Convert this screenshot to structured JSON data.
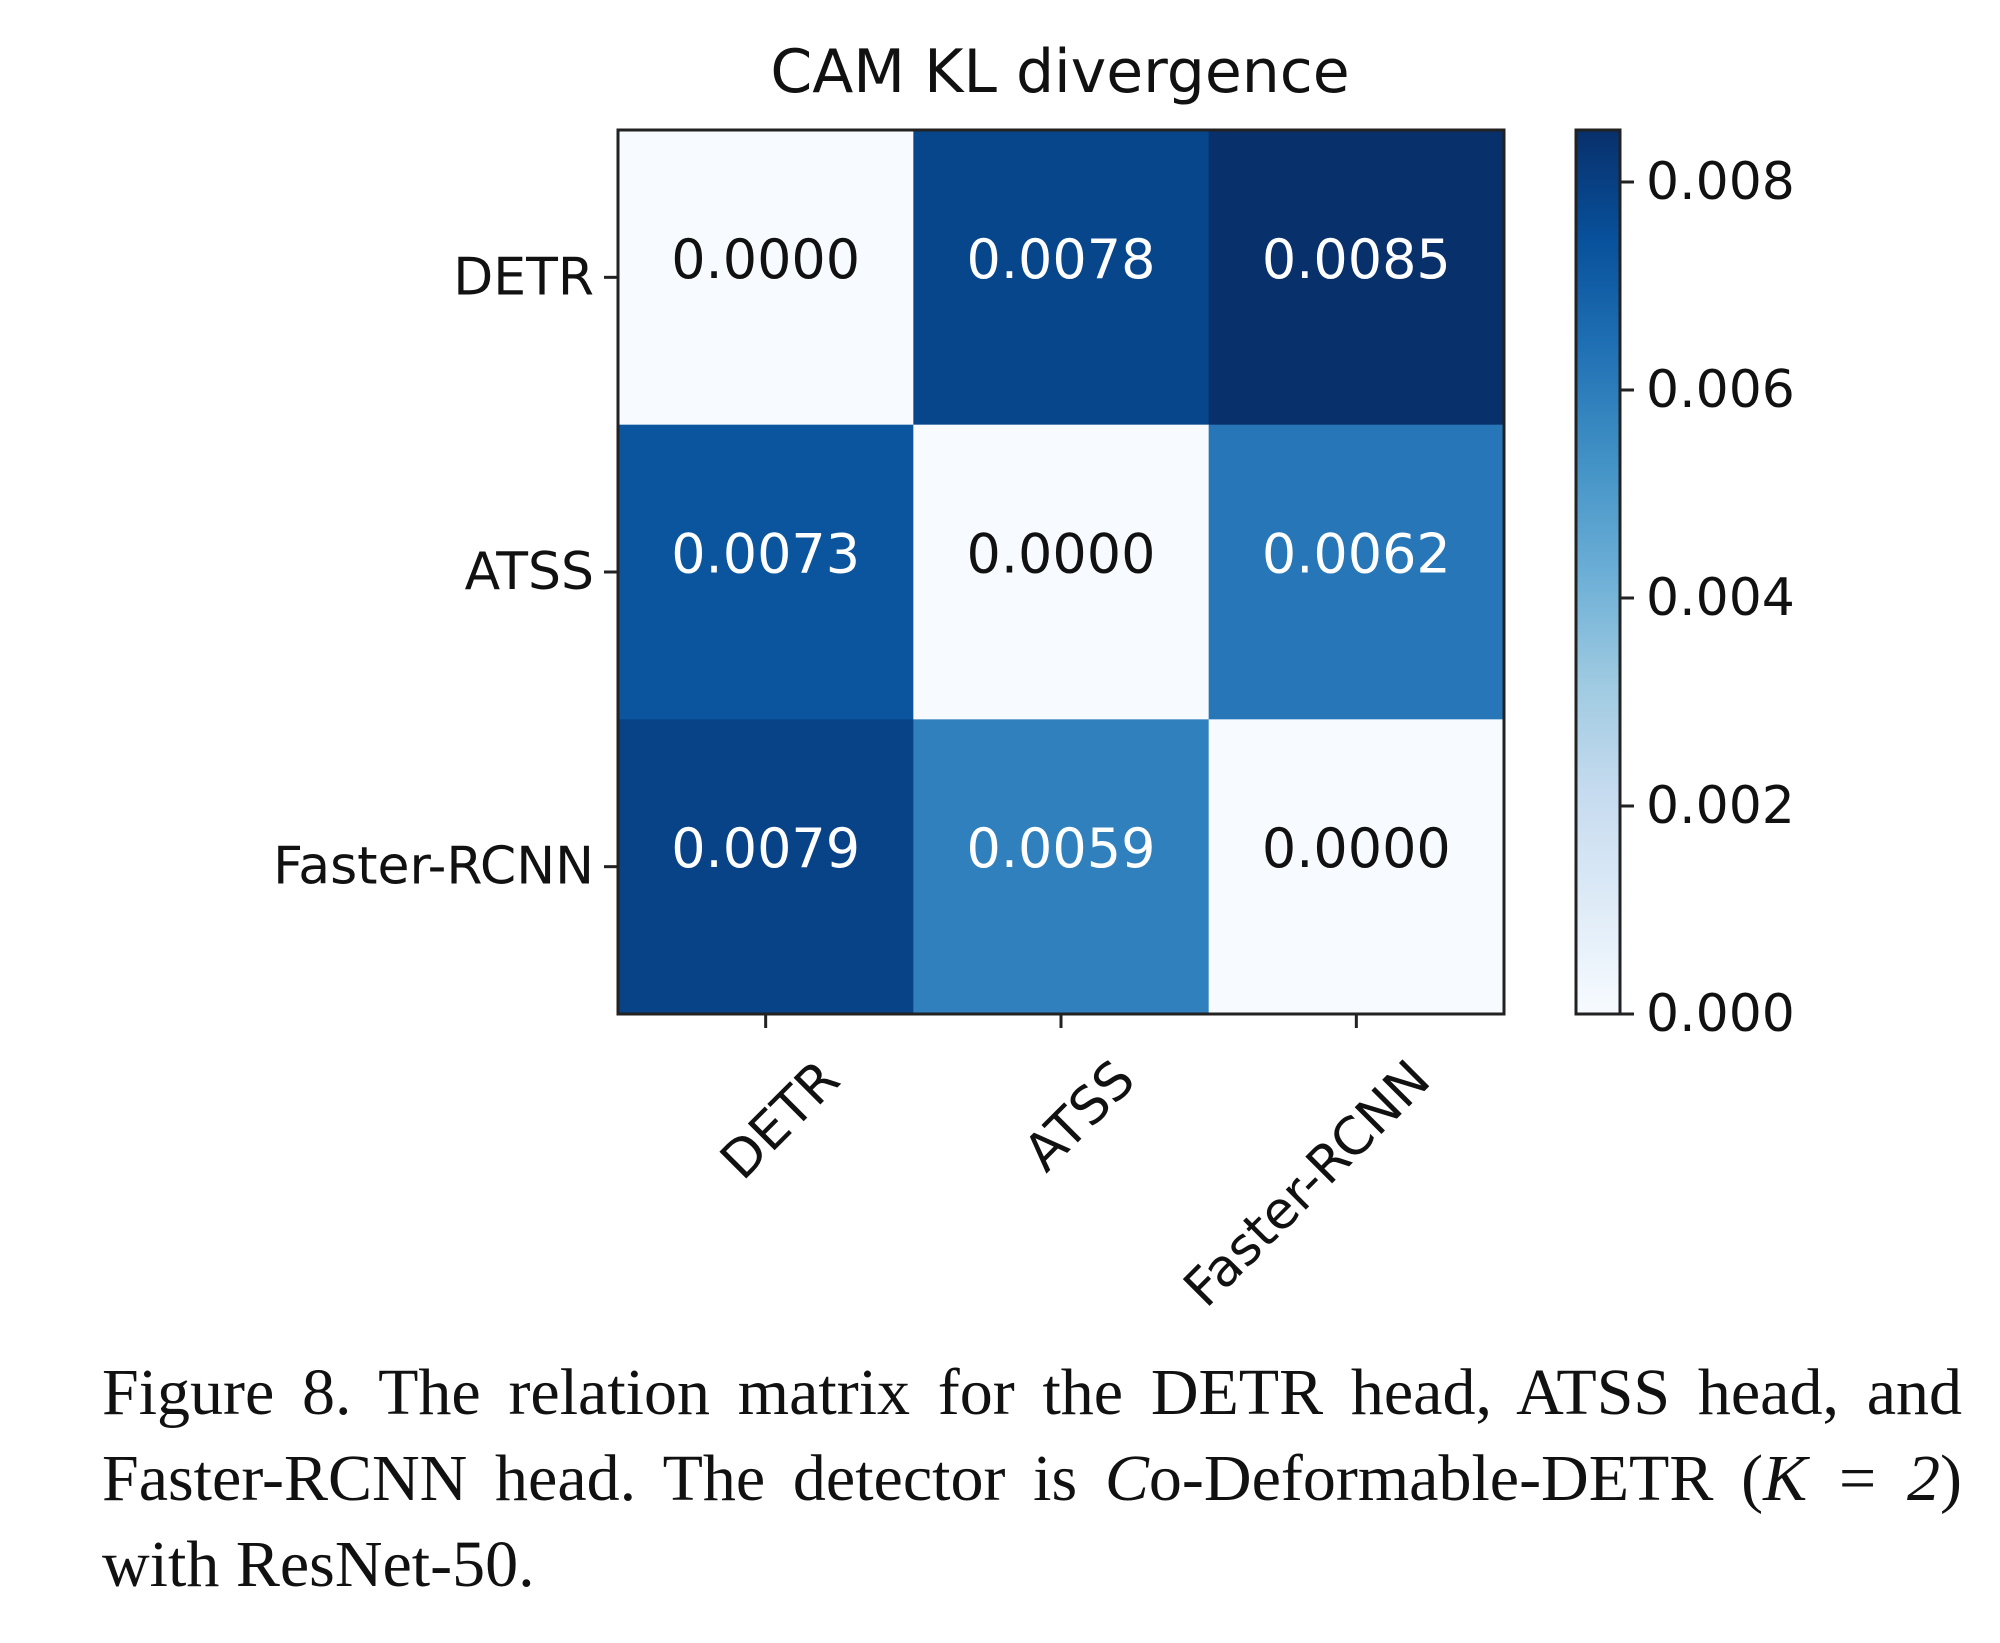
{
  "chart_data": {
    "type": "heatmap",
    "title": "CAM KL divergence",
    "rows": [
      "DETR",
      "ATSS",
      "Faster-RCNN"
    ],
    "columns": [
      "DETR",
      "ATSS",
      "Faster-RCNN"
    ],
    "values": [
      [
        0.0,
        0.0078,
        0.0085
      ],
      [
        0.0073,
        0.0,
        0.0062
      ],
      [
        0.0079,
        0.0059,
        0.0
      ]
    ],
    "cell_labels": [
      [
        "0.0000",
        "0.0078",
        "0.0085"
      ],
      [
        "0.0073",
        "0.0000",
        "0.0062"
      ],
      [
        "0.0079",
        "0.0059",
        "0.0000"
      ]
    ],
    "colormap": "Blues",
    "colorbar": {
      "range": [
        0,
        0.0085
      ],
      "ticks": [
        0,
        0.002,
        0.004,
        0.006,
        0.008
      ],
      "tick_labels": [
        "0.000",
        "0.002",
        "0.004",
        "0.006",
        "0.008"
      ]
    },
    "colors": {
      "cell_text_dark": "#111111",
      "cell_text_light": "#ffffff"
    }
  },
  "caption": {
    "prefix": "Figure 8.  The relation matrix for the DETR head, ATSS head, and Faster-RCNN head.  The detector is ",
    "co_symbol": "C",
    "after_symbol": "o-Deformable-DETR (",
    "math": "K = 2",
    "suffix": ") with ResNet-50."
  }
}
